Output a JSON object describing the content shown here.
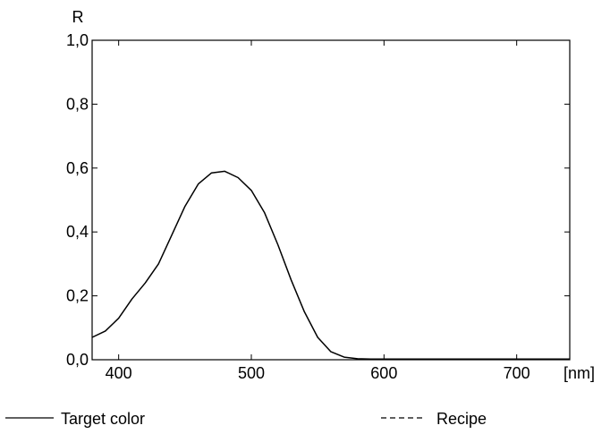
{
  "chart_data": {
    "type": "line",
    "title": "",
    "ylabel": "R",
    "xunit": "[nm]",
    "xlim": [
      380,
      740
    ],
    "ylim": [
      0,
      1
    ],
    "xticks": [
      {
        "value": 400,
        "label": "400"
      },
      {
        "value": 500,
        "label": "500"
      },
      {
        "value": 600,
        "label": "600"
      },
      {
        "value": 700,
        "label": "700"
      }
    ],
    "yticks": [
      {
        "value": 0.0,
        "label": "0,0"
      },
      {
        "value": 0.2,
        "label": "0,2"
      },
      {
        "value": 0.4,
        "label": "0,4"
      },
      {
        "value": 0.6,
        "label": "0,6"
      },
      {
        "value": 0.8,
        "label": "0,8"
      },
      {
        "value": 1.0,
        "label": "1,0"
      }
    ],
    "grid": false,
    "legend_position": "bottom",
    "series": [
      {
        "name": "Target color",
        "style": "solid",
        "color": "#000000",
        "x": [
          380,
          390,
          400,
          410,
          420,
          430,
          440,
          450,
          460,
          470,
          480,
          490,
          500,
          510,
          520,
          530,
          540,
          550,
          560,
          570,
          580,
          590,
          600,
          650,
          700,
          740
        ],
        "y": [
          0.07,
          0.09,
          0.13,
          0.19,
          0.24,
          0.3,
          0.39,
          0.48,
          0.55,
          0.585,
          0.59,
          0.57,
          0.53,
          0.46,
          0.36,
          0.25,
          0.15,
          0.07,
          0.025,
          0.008,
          0.003,
          0.002,
          0.002,
          0.002,
          0.002,
          0.002
        ]
      },
      {
        "name": "Recipe",
        "style": "dashed",
        "color": "#000000",
        "x": [],
        "y": []
      }
    ]
  }
}
